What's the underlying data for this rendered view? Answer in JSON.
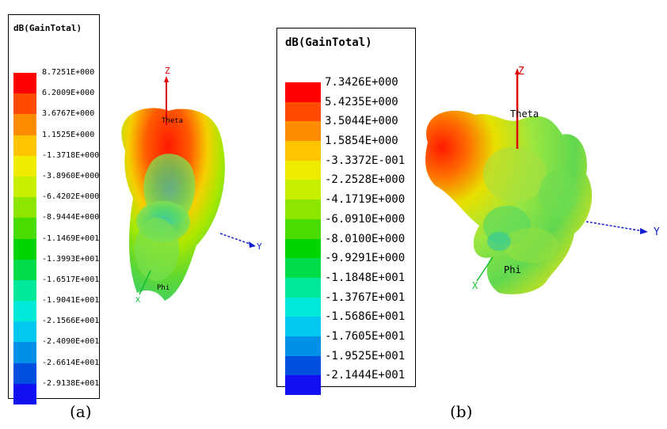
{
  "figure_a": {
    "caption": "(a)",
    "legend": {
      "title": "dB(GainTotal)",
      "labels": [
        "8.7251E+000",
        "6.2009E+000",
        "3.6767E+000",
        "1.1525E+000",
        "-1.3718E+000",
        "-3.8960E+000",
        "-6.4202E+000",
        "-8.9444E+000",
        "-1.1469E+001",
        "-1.3993E+001",
        "-1.6517E+001",
        "-1.9041E+001",
        "-2.1566E+001",
        "-2.4090E+001",
        "-2.6614E+001",
        "-2.9138E+001"
      ],
      "colors": [
        "#ff0000",
        "#ff4a00",
        "#ff8c00",
        "#ffc400",
        "#f0ec00",
        "#c6f000",
        "#8ce600",
        "#48dc00",
        "#00d400",
        "#00dc48",
        "#00e89a",
        "#00e8d8",
        "#00c8f0",
        "#0090e8",
        "#0050e0",
        "#1010f0"
      ]
    },
    "axes": {
      "z": "Z",
      "y": "Y",
      "x": "X",
      "theta": "Theta",
      "phi": "Phi"
    }
  },
  "figure_b": {
    "caption": "(b)",
    "legend": {
      "title": "dB(GainTotal)",
      "labels": [
        "7.3426E+000",
        "5.4235E+000",
        "3.5044E+000",
        "1.5854E+000",
        "-3.3372E-001",
        "-2.2528E+000",
        "-4.1719E+000",
        "-6.0910E+000",
        "-8.0100E+000",
        "-9.9291E+000",
        "-1.1848E+001",
        "-1.3767E+001",
        "-1.5686E+001",
        "-1.7605E+001",
        "-1.9525E+001",
        "-2.1444E+001"
      ],
      "colors": [
        "#ff0000",
        "#ff4a00",
        "#ff8c00",
        "#ffc400",
        "#f0ec00",
        "#c6f000",
        "#8ce600",
        "#48dc00",
        "#00d400",
        "#00dc48",
        "#00e89a",
        "#00e8d8",
        "#00c8f0",
        "#0090e8",
        "#0050e0",
        "#1010f0"
      ]
    },
    "axes": {
      "z": "Z",
      "y": "Y",
      "x": "X",
      "theta": "Theta",
      "phi": "Phi"
    }
  }
}
